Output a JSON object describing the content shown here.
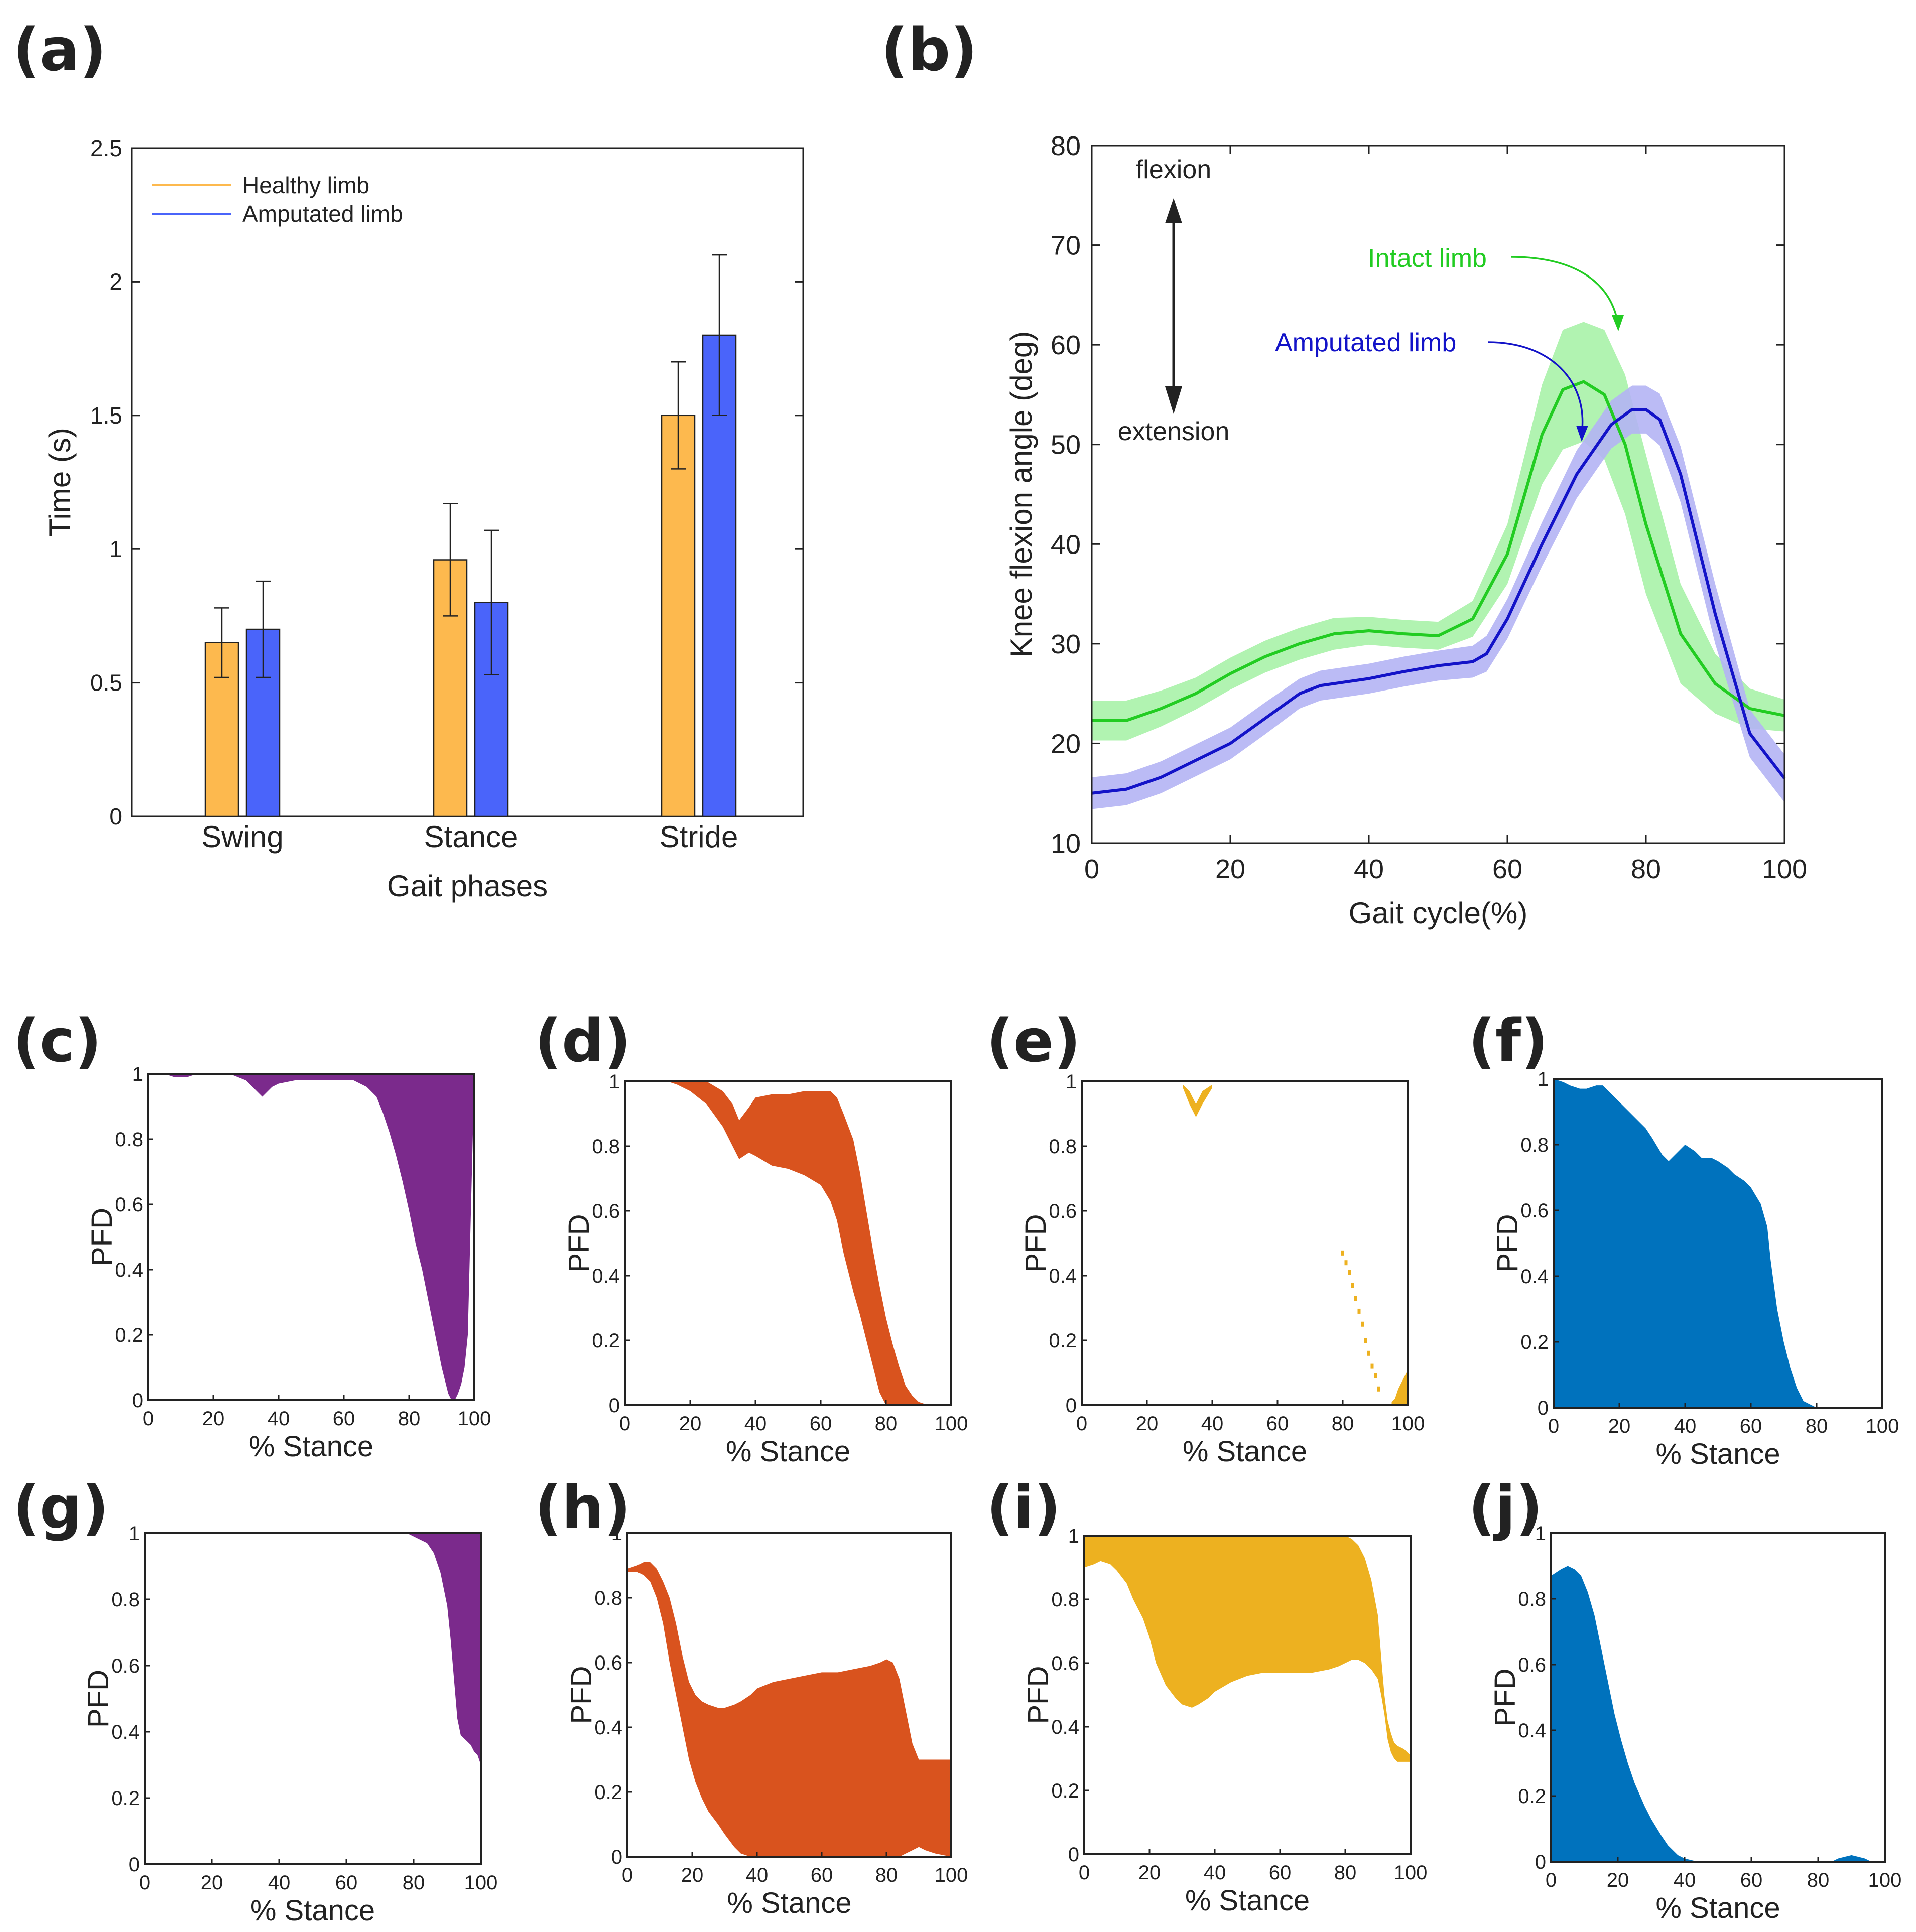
{
  "panel_labels": {
    "a": "(a)",
    "b": "(b)",
    "c": "(c)",
    "d": "(d)",
    "e": "(e)",
    "f": "(f)",
    "g": "(g)",
    "h": "(h)",
    "i": "(i)",
    "j": "(j)"
  },
  "colors": {
    "healthy": "#FDB94E",
    "amputated": "#4A64FA",
    "intact_line": "#22CC22",
    "intact_band": "#A9F2A9",
    "amp_line": "#1313C8",
    "amp_band": "#B4B4F4",
    "purple": "#7B2A8C",
    "orange": "#D9531E",
    "yellow": "#EDB120",
    "blue": "#0072BD"
  },
  "chart_data": [
    {
      "id": "a",
      "type": "bar",
      "categories": [
        "Swing",
        "Stance",
        "Stride"
      ],
      "series": [
        {
          "name": "Healthy limb",
          "values": [
            0.65,
            0.96,
            1.5
          ],
          "err_low": [
            0.52,
            0.75,
            1.3
          ],
          "err_high": [
            0.78,
            1.17,
            1.7
          ]
        },
        {
          "name": "Amputated limb",
          "values": [
            0.7,
            0.8,
            1.8
          ],
          "err_low": [
            0.52,
            0.53,
            1.5
          ],
          "err_high": [
            0.88,
            1.07,
            2.1
          ]
        }
      ],
      "xlabel": "Gait phases",
      "ylabel": "Time (s)",
      "ylim": [
        0,
        2.5
      ],
      "yticks": [
        "0",
        "0.5",
        "1",
        "1.5",
        "2",
        "2.5"
      ],
      "legend_position": "top-left"
    },
    {
      "id": "b",
      "type": "line",
      "xlabel": "Gait cycle(%)",
      "ylabel": "Knee flexion angle (deg)",
      "xlim": [
        0,
        100
      ],
      "ylim": [
        10,
        80
      ],
      "xticks": [
        "0",
        "20",
        "40",
        "60",
        "80",
        "100"
      ],
      "yticks": [
        "10",
        "20",
        "30",
        "40",
        "50",
        "60",
        "70",
        "80"
      ],
      "annotations": {
        "flexion": "flexion",
        "extension": "extension",
        "intact": "Intact limb",
        "amputated": "Amputated limb"
      },
      "series": [
        {
          "name": "Intact limb",
          "x": [
            0,
            5,
            10,
            15,
            20,
            25,
            30,
            35,
            40,
            45,
            50,
            55,
            60,
            65,
            68,
            71,
            74,
            77,
            80,
            85,
            90,
            95,
            100
          ],
          "y": [
            22.3,
            22.3,
            23.5,
            25,
            27,
            28.7,
            30,
            31,
            31.3,
            31,
            30.8,
            32.5,
            39,
            51,
            55.5,
            56.3,
            55,
            50,
            42,
            31,
            26,
            23.5,
            22.8
          ],
          "band": [
            2,
            2,
            1.8,
            1.6,
            1.6,
            1.6,
            1.6,
            1.6,
            1.4,
            1.4,
            1.4,
            1.8,
            3,
            5,
            6,
            6,
            6.5,
            7,
            7,
            5,
            3,
            2,
            1.6
          ]
        },
        {
          "name": "Amputated limb",
          "x": [
            0,
            5,
            10,
            15,
            20,
            25,
            30,
            33,
            36,
            40,
            45,
            50,
            55,
            57,
            60,
            65,
            70,
            75,
            78,
            80,
            82,
            85,
            90,
            95,
            100
          ],
          "y": [
            15,
            15.4,
            16.6,
            18.3,
            20,
            22.5,
            25,
            25.8,
            26.1,
            26.5,
            27.2,
            27.8,
            28.2,
            29,
            32.5,
            40,
            47,
            52,
            53.5,
            53.5,
            52.5,
            47,
            33,
            21,
            16.5
          ],
          "band": [
            1.6,
            1.6,
            1.6,
            1.6,
            1.6,
            1.6,
            1.5,
            1.5,
            1.5,
            1.5,
            1.5,
            1.5,
            1.6,
            1.8,
            2,
            2.2,
            2.4,
            2.4,
            2.4,
            2.4,
            2.6,
            2.8,
            3,
            2.4,
            2.4
          ]
        }
      ]
    },
    {
      "id": "c",
      "type": "area",
      "xlabel": "% Stance",
      "ylabel": "PFD",
      "xlim": [
        0,
        100
      ],
      "ylim": [
        0,
        1
      ],
      "xticks": [
        "0",
        "20",
        "40",
        "60",
        "80",
        "100"
      ],
      "yticks": [
        "0",
        "0.2",
        "0.4",
        "0.6",
        "0.8",
        "1"
      ],
      "x": [
        0,
        3,
        5,
        8,
        10,
        12,
        15,
        20,
        25,
        30,
        33,
        35,
        38,
        40,
        45,
        50,
        55,
        60,
        63,
        65,
        67,
        70,
        72,
        74,
        76,
        78,
        80,
        82,
        84,
        86,
        88,
        89,
        90,
        91,
        92,
        93,
        94,
        95,
        96,
        97,
        98,
        99,
        100
      ],
      "y_low": [
        1,
        1,
        1,
        0.99,
        0.99,
        0.99,
        1,
        1,
        1,
        0.98,
        0.95,
        0.93,
        0.96,
        0.97,
        0.98,
        0.98,
        0.98,
        0.98,
        0.98,
        0.97,
        0.96,
        0.93,
        0.88,
        0.82,
        0.75,
        0.67,
        0.58,
        0.48,
        0.4,
        0.3,
        0.2,
        0.15,
        0.1,
        0.06,
        0.02,
        0,
        0,
        0.02,
        0.05,
        0.1,
        0.2,
        0.6,
        1
      ],
      "y_high": [
        1,
        1,
        1,
        1,
        1,
        1,
        1,
        1,
        1,
        1,
        1,
        1,
        1,
        1,
        1,
        1,
        1,
        1,
        1,
        1,
        1,
        1,
        1,
        1,
        1,
        1,
        1,
        1,
        1,
        1,
        1,
        1,
        1,
        1,
        1,
        1,
        1,
        1,
        1,
        1,
        1,
        1,
        1
      ]
    },
    {
      "id": "d",
      "type": "area",
      "xlabel": "% Stance",
      "ylabel": "PFD",
      "xlim": [
        0,
        100
      ],
      "ylim": [
        0,
        1
      ],
      "xticks": [
        "0",
        "20",
        "40",
        "60",
        "80",
        "100"
      ],
      "yticks": [
        "0",
        "0.2",
        "0.4",
        "0.6",
        "0.8",
        "1"
      ],
      "x": [
        13,
        16,
        20,
        25,
        30,
        33,
        35,
        38,
        40,
        45,
        50,
        55,
        60,
        63,
        65,
        67,
        70,
        72,
        74,
        76,
        78,
        80,
        82,
        84,
        86,
        88,
        90,
        93
      ],
      "y_low": [
        1,
        0.99,
        0.97,
        0.93,
        0.86,
        0.8,
        0.76,
        0.78,
        0.77,
        0.74,
        0.73,
        0.71,
        0.68,
        0.63,
        0.57,
        0.47,
        0.35,
        0.28,
        0.2,
        0.12,
        0.04,
        0,
        0,
        0,
        0,
        0,
        0,
        0
      ],
      "y_high": [
        1,
        1,
        1,
        1,
        0.97,
        0.93,
        0.88,
        0.92,
        0.95,
        0.96,
        0.96,
        0.97,
        0.97,
        0.97,
        0.95,
        0.9,
        0.82,
        0.72,
        0.6,
        0.48,
        0.37,
        0.27,
        0.19,
        0.12,
        0.06,
        0.03,
        0.01,
        0
      ]
    },
    {
      "id": "e",
      "type": "area",
      "xlabel": "% Stance",
      "ylabel": "PFD",
      "xlim": [
        0,
        100
      ],
      "ylim": [
        0,
        1
      ],
      "xticks": [
        "0",
        "20",
        "40",
        "60",
        "80",
        "100"
      ],
      "yticks": [
        "0",
        "0.2",
        "0.4",
        "0.6",
        "0.8",
        "1"
      ],
      "regions": [
        {
          "x": [
            31,
            33,
            35,
            37,
            40
          ],
          "y_low": [
            0.98,
            0.93,
            0.89,
            0.93,
            0.98
          ],
          "y_high": [
            0.99,
            0.97,
            0.93,
            0.97,
            0.99
          ]
        },
        {
          "x": [
            95,
            96,
            97,
            98,
            99,
            100
          ],
          "y_low": [
            0,
            0,
            0,
            0,
            0,
            0
          ],
          "y_high": [
            0.01,
            0.02,
            0.05,
            0.07,
            0.09,
            0.11
          ]
        }
      ],
      "points": [
        {
          "x": 80,
          "y": 0.47
        },
        {
          "x": 81,
          "y": 0.44
        },
        {
          "x": 82,
          "y": 0.41
        },
        {
          "x": 83,
          "y": 0.37
        },
        {
          "x": 84,
          "y": 0.33
        },
        {
          "x": 85,
          "y": 0.29
        },
        {
          "x": 86,
          "y": 0.25
        },
        {
          "x": 87,
          "y": 0.2
        },
        {
          "x": 88,
          "y": 0.16
        },
        {
          "x": 89,
          "y": 0.12
        },
        {
          "x": 90,
          "y": 0.09
        },
        {
          "x": 91,
          "y": 0.05
        }
      ]
    },
    {
      "id": "f",
      "type": "area",
      "xlabel": "% Stance",
      "ylabel": "PFD",
      "xlim": [
        0,
        100
      ],
      "ylim": [
        0,
        1
      ],
      "xticks": [
        "0",
        "20",
        "40",
        "60",
        "80",
        "100"
      ],
      "yticks": [
        "0",
        "0.2",
        "0.4",
        "0.6",
        "0.8",
        "1"
      ],
      "x": [
        0,
        3,
        5,
        8,
        10,
        13,
        15,
        18,
        20,
        23,
        25,
        28,
        30,
        33,
        35,
        38,
        40,
        43,
        45,
        48,
        50,
        53,
        55,
        58,
        60,
        63,
        65,
        66,
        68,
        70,
        72,
        74,
        76,
        78,
        80
      ],
      "y_low": [
        0,
        0,
        0,
        0,
        0,
        0,
        0,
        0,
        0,
        0,
        0,
        0,
        0,
        0,
        0,
        0,
        0,
        0,
        0,
        0,
        0,
        0,
        0,
        0,
        0,
        0,
        0,
        0,
        0,
        0,
        0,
        0,
        0,
        0,
        0
      ],
      "y_high": [
        1,
        0.99,
        0.98,
        0.97,
        0.97,
        0.98,
        0.98,
        0.95,
        0.93,
        0.9,
        0.88,
        0.85,
        0.82,
        0.77,
        0.75,
        0.78,
        0.8,
        0.78,
        0.76,
        0.76,
        0.75,
        0.73,
        0.71,
        0.69,
        0.67,
        0.62,
        0.55,
        0.45,
        0.3,
        0.2,
        0.12,
        0.06,
        0.02,
        0.01,
        0
      ]
    },
    {
      "id": "g",
      "type": "area",
      "xlabel": "% Stance",
      "ylabel": "PFD",
      "xlim": [
        0,
        100
      ],
      "ylim": [
        0,
        1
      ],
      "xticks": [
        "0",
        "20",
        "40",
        "60",
        "80",
        "100"
      ],
      "yticks": [
        "0",
        "0.2",
        "0.4",
        "0.6",
        "0.8",
        "1"
      ],
      "x": [
        78,
        80,
        82,
        84,
        86,
        88,
        90,
        91,
        92,
        93,
        94,
        95,
        96,
        97,
        98,
        99,
        100
      ],
      "y_low": [
        1,
        0.99,
        0.98,
        0.97,
        0.94,
        0.88,
        0.78,
        0.68,
        0.56,
        0.44,
        0.39,
        0.38,
        0.37,
        0.36,
        0.34,
        0.33,
        0.3
      ],
      "y_high": [
        1,
        1,
        1,
        1,
        1,
        1,
        1,
        1,
        1,
        1,
        1,
        1,
        1,
        1,
        1,
        1,
        1
      ]
    },
    {
      "id": "h",
      "type": "area",
      "xlabel": "% Stance",
      "ylabel": "PFD",
      "xlim": [
        0,
        100
      ],
      "ylim": [
        0,
        1
      ],
      "xticks": [
        "0",
        "20",
        "40",
        "60",
        "80",
        "100"
      ],
      "yticks": [
        "0",
        "0.2",
        "0.4",
        "0.6",
        "0.8",
        "1"
      ],
      "x": [
        0,
        3,
        5,
        7,
        9,
        11,
        13,
        15,
        17,
        19,
        21,
        23,
        25,
        28,
        30,
        33,
        35,
        38,
        40,
        45,
        50,
        55,
        60,
        65,
        70,
        75,
        78,
        80,
        82,
        84,
        86,
        88,
        90,
        92,
        95,
        100
      ],
      "y_low": [
        0.88,
        0.88,
        0.87,
        0.85,
        0.8,
        0.72,
        0.6,
        0.5,
        0.4,
        0.3,
        0.23,
        0.18,
        0.14,
        0.1,
        0.07,
        0.03,
        0.01,
        0,
        0,
        0,
        0,
        0,
        0,
        0,
        0,
        0,
        0,
        0,
        0,
        0,
        0.01,
        0.02,
        0.03,
        0.02,
        0.01,
        0
      ],
      "y_high": [
        0.89,
        0.9,
        0.91,
        0.91,
        0.89,
        0.85,
        0.8,
        0.72,
        0.62,
        0.54,
        0.5,
        0.48,
        0.47,
        0.46,
        0.46,
        0.47,
        0.48,
        0.5,
        0.52,
        0.54,
        0.55,
        0.56,
        0.57,
        0.57,
        0.58,
        0.59,
        0.6,
        0.61,
        0.6,
        0.55,
        0.45,
        0.35,
        0.3,
        0.3,
        0.3,
        0.3
      ]
    },
    {
      "id": "i",
      "type": "area",
      "xlabel": "% Stance",
      "ylabel": "PFD",
      "xlim": [
        0,
        100
      ],
      "ylim": [
        0,
        1
      ],
      "xticks": [
        "0",
        "20",
        "40",
        "60",
        "80",
        "100"
      ],
      "yticks": [
        "0",
        "0.2",
        "0.4",
        "0.6",
        "0.8",
        "1"
      ],
      "x": [
        0,
        3,
        5,
        8,
        10,
        13,
        15,
        18,
        20,
        22,
        25,
        28,
        30,
        33,
        35,
        38,
        40,
        45,
        50,
        55,
        60,
        65,
        70,
        75,
        78,
        80,
        82,
        84,
        86,
        88,
        90,
        91,
        92,
        93,
        94,
        95,
        96,
        98,
        100
      ],
      "y_low": [
        0.9,
        0.91,
        0.92,
        0.91,
        0.89,
        0.85,
        0.8,
        0.74,
        0.68,
        0.6,
        0.53,
        0.49,
        0.47,
        0.46,
        0.47,
        0.49,
        0.51,
        0.54,
        0.56,
        0.57,
        0.57,
        0.57,
        0.57,
        0.58,
        0.59,
        0.6,
        0.61,
        0.61,
        0.6,
        0.58,
        0.55,
        0.5,
        0.44,
        0.36,
        0.32,
        0.3,
        0.29,
        0.29,
        0.29
      ],
      "y_high": [
        1,
        1,
        1,
        1,
        1,
        1,
        1,
        1,
        1,
        1,
        1,
        1,
        1,
        1,
        1,
        1,
        1,
        1,
        1,
        1,
        1,
        1,
        1,
        1,
        1,
        1,
        0.99,
        0.97,
        0.93,
        0.86,
        0.75,
        0.62,
        0.5,
        0.42,
        0.38,
        0.35,
        0.34,
        0.33,
        0.31
      ]
    },
    {
      "id": "j",
      "type": "area",
      "xlabel": "% Stance",
      "ylabel": "PFD",
      "xlim": [
        0,
        100
      ],
      "ylim": [
        0,
        1
      ],
      "xticks": [
        "0",
        "20",
        "40",
        "60",
        "80",
        "100"
      ],
      "yticks": [
        "0",
        "0.2",
        "0.4",
        "0.6",
        "0.8",
        "1"
      ],
      "x": [
        0,
        3,
        5,
        7,
        9,
        11,
        13,
        15,
        17,
        19,
        21,
        23,
        25,
        28,
        30,
        33,
        35,
        38,
        40,
        42,
        44,
        50,
        60,
        70,
        80,
        84,
        86,
        88,
        90,
        92,
        94,
        96,
        100
      ],
      "y_low": [
        0,
        0,
        0,
        0,
        0,
        0,
        0,
        0,
        0,
        0,
        0,
        0,
        0,
        0,
        0,
        0,
        0,
        0,
        0,
        0,
        0,
        0,
        0,
        0,
        0,
        0,
        0,
        0,
        0,
        0,
        0,
        0,
        0
      ],
      "y_high": [
        0.87,
        0.89,
        0.9,
        0.89,
        0.87,
        0.82,
        0.75,
        0.65,
        0.55,
        0.45,
        0.37,
        0.3,
        0.24,
        0.17,
        0.13,
        0.08,
        0.05,
        0.02,
        0.01,
        0.005,
        0,
        0,
        0,
        0,
        0,
        0,
        0.01,
        0.015,
        0.02,
        0.015,
        0.01,
        0,
        0
      ]
    }
  ]
}
